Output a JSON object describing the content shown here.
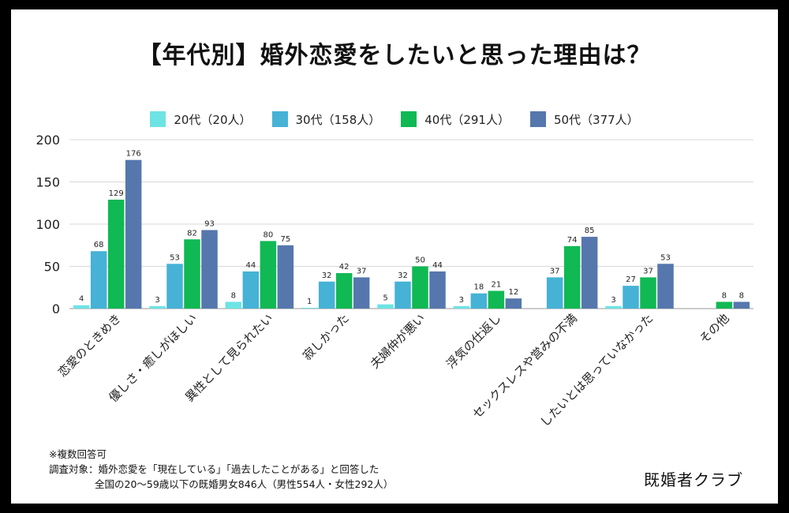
{
  "title": "【年代別】婚外恋愛をしたいと思った理由は？",
  "chart_data": {
    "type": "bar",
    "title": "【年代別】婚外恋愛をしたいと思った理由は？",
    "categories": [
      "恋愛のときめき",
      "優しさ・癒しがほしい",
      "異性として見られたい",
      "寂しかった",
      "夫婦仲が悪い",
      "浮気の仕返し",
      "セックスレスや営みの不満",
      "したいとは思っていなかった",
      "その他"
    ],
    "series": [
      {
        "name": "20代（20人）",
        "color": "#6ee3e3",
        "values": [
          4,
          3,
          8,
          1,
          5,
          3,
          null,
          3,
          null
        ]
      },
      {
        "name": "30代（158人）",
        "color": "#45b2d6",
        "values": [
          68,
          53,
          44,
          32,
          32,
          18,
          37,
          27,
          null
        ]
      },
      {
        "name": "40代（291人）",
        "color": "#10b953",
        "values": [
          129,
          82,
          80,
          42,
          50,
          21,
          74,
          37,
          8
        ]
      },
      {
        "name": "50代（377人）",
        "color": "#5677ad",
        "values": [
          176,
          93,
          75,
          37,
          44,
          12,
          85,
          53,
          8
        ]
      }
    ],
    "ylim": [
      0,
      200
    ],
    "yticks": [
      0,
      50,
      100,
      150,
      200
    ],
    "grid": true,
    "legend": "top"
  },
  "legend": [
    {
      "label": "20代（20人）",
      "color": "#6ee3e3"
    },
    {
      "label": "30代（158人）",
      "color": "#45b2d6"
    },
    {
      "label": "40代（291人）",
      "color": "#10b953"
    },
    {
      "label": "50代（377人）",
      "color": "#5677ad"
    }
  ],
  "notes": {
    "line1": "※複数回答可",
    "line2": "調査対象：婚外恋愛を「現在している」「過去したことがある」と回答した",
    "line3": "全国の20〜59歳以下の既婚男女846人（男性554人・女性292人）"
  },
  "brand": "既婚者クラブ"
}
